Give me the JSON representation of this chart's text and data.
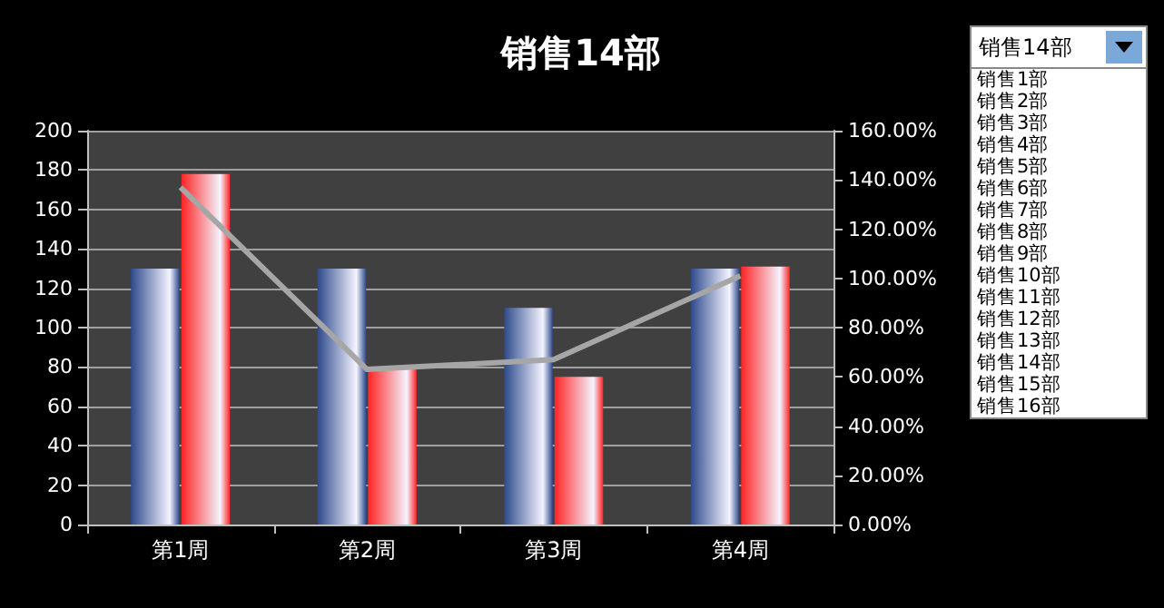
{
  "chart_data": {
    "type": "bar",
    "title": "销售14部",
    "categories": [
      "第1周",
      "第2周",
      "第3周",
      "第4周"
    ],
    "series": [
      {
        "color": "#2e4a8c",
        "values": [
          130,
          130,
          110,
          130
        ]
      },
      {
        "color": "#ff2424",
        "values": [
          178,
          79,
          75,
          131
        ]
      },
      {
        "type": "line",
        "axis": "y2",
        "color": "#a6a6a6",
        "values": [
          137,
          63,
          67,
          101
        ]
      }
    ],
    "ylim": [
      0,
      200
    ],
    "yticks": [
      0,
      20,
      40,
      60,
      80,
      100,
      120,
      140,
      160,
      180,
      200
    ],
    "y2lim": [
      0,
      160
    ],
    "y2ticks": [
      {
        "value": 0,
        "label": "0.00%"
      },
      {
        "value": 20,
        "label": "20.00%"
      },
      {
        "value": 40,
        "label": "40.00%"
      },
      {
        "value": 60,
        "label": "60.00%"
      },
      {
        "value": 80,
        "label": "80.00%"
      },
      {
        "value": 100,
        "label": "100.00%"
      },
      {
        "value": 120,
        "label": "120.00%"
      },
      {
        "value": 140,
        "label": "140.00%"
      },
      {
        "value": 160,
        "label": "160.00%"
      }
    ],
    "grid": "y",
    "marker": "none",
    "annotations": [
      "销售14部",
      "销售1部",
      "销售2部",
      "销售3部",
      "销售4部",
      "销售5部",
      "销售6部",
      "销售7部",
      "销售8部",
      "销售9部",
      "销售10部",
      "销售11部",
      "销售12部",
      "销售13部",
      "销售14部",
      "销售15部",
      "销售16部"
    ]
  }
}
